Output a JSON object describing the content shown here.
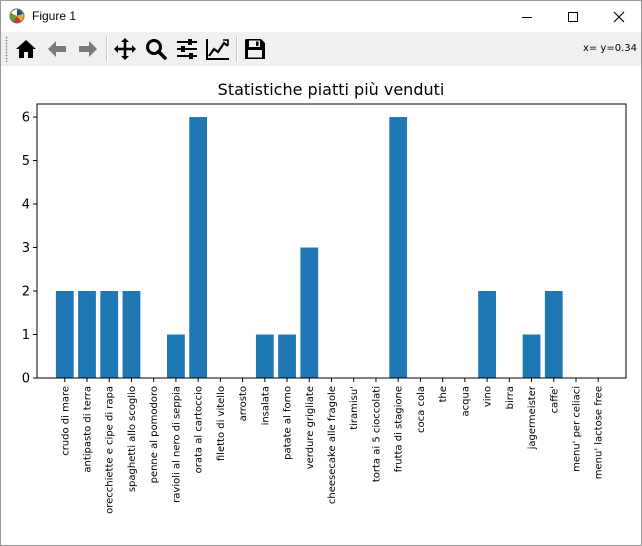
{
  "window": {
    "title": "Figure 1",
    "app_icon": "matplotlib-icon"
  },
  "toolbar": {
    "buttons": [
      {
        "name": "home-button",
        "icon": "home-icon"
      },
      {
        "name": "back-button",
        "icon": "arrow-left-icon"
      },
      {
        "name": "forward-button",
        "icon": "arrow-right-icon"
      },
      {
        "name": "pan-button",
        "icon": "move-icon"
      },
      {
        "name": "zoom-button",
        "icon": "magnifier-icon"
      },
      {
        "name": "subplots-button",
        "icon": "sliders-icon"
      },
      {
        "name": "edit-axes-button",
        "icon": "line-chart-icon"
      },
      {
        "name": "save-button",
        "icon": "floppy-disk-icon"
      }
    ],
    "coords": "x= y=0.34"
  },
  "chart_data": {
    "type": "bar",
    "title": "Statistiche piatti più venduti",
    "xlabel": "",
    "ylabel": "",
    "ylim": [
      0,
      6.3
    ],
    "yticks": [
      0,
      1,
      2,
      3,
      4,
      5,
      6
    ],
    "bar_color": "#1f77b4",
    "grid": false,
    "categories": [
      "crudo di mare",
      "antipasto di terra",
      "orecchiette e cipe di rapa",
      "spaghetti allo scoglio",
      "penne al pomodoro",
      "ravioli al nero di seppia",
      "orata al cartoccio",
      "filetto di vitello",
      "arrosto",
      "insalata",
      "patate al forno",
      "verdure grigliate",
      "cheesecake alle fragole",
      "tiramisu'",
      "torta ai 5 cioccolati",
      "frutta di stagione",
      "coca cola",
      "the",
      "acqua",
      "vino",
      "birra",
      "jagermeister",
      "caffe'",
      "menu' per celiaci",
      "menu' lactose free"
    ],
    "values": [
      2,
      2,
      2,
      2,
      0,
      1,
      6,
      0,
      0,
      1,
      1,
      3,
      0,
      0,
      0,
      6,
      0,
      0,
      0,
      2,
      0,
      1,
      2,
      0,
      0
    ]
  }
}
